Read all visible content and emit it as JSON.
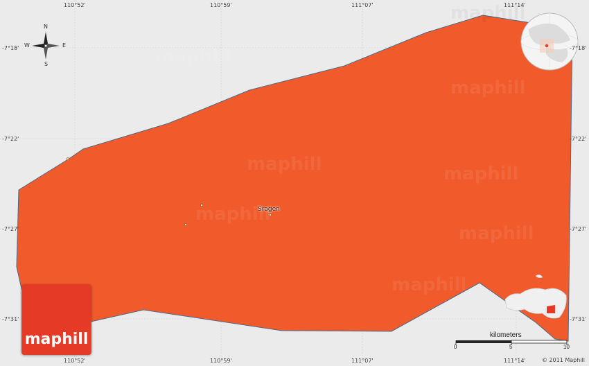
{
  "map": {
    "region_color": "#f15a2b",
    "region_outline": "#4a6b8a",
    "background_color": "#ebebeb",
    "grid_color": "#c8c8c8",
    "longitude_labels": [
      "110°52'",
      "110°59'",
      "111°07'",
      "111°14'"
    ],
    "latitude_labels": [
      "-7°18'",
      "-7°22'",
      "-7°27'",
      "-7°31'"
    ],
    "place_name": "Sragen"
  },
  "compass": {
    "north": "N",
    "south": "S",
    "east": "E",
    "west": "W"
  },
  "brand": {
    "logo_text": "maphill",
    "watermark_text": "maphill",
    "logo_color": "#e53a25"
  },
  "scale": {
    "title": "kilometers",
    "ticks": [
      "0",
      "5",
      "10"
    ]
  },
  "copyright": "© 2011 Maphill",
  "locator_icons": [
    "globe-locator-icon",
    "province-inset-icon"
  ]
}
